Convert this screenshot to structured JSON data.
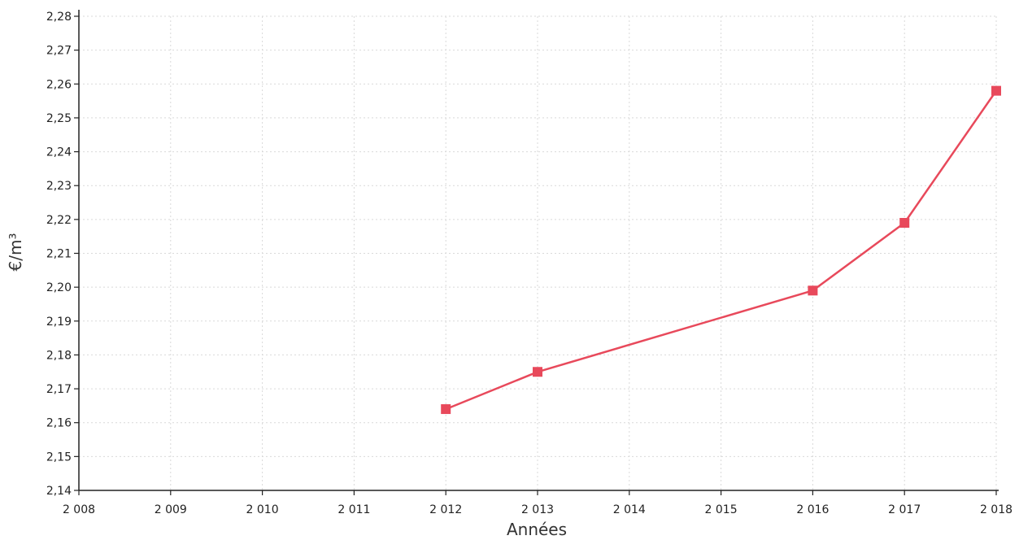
{
  "chart_data": {
    "type": "line",
    "xlabel": "Années",
    "ylabel": "€/m³",
    "x_ticks": [
      "2 008",
      "2 009",
      "2 010",
      "2 011",
      "2 012",
      "2 013",
      "2 014",
      "2 015",
      "2 016",
      "2 017",
      "2 018"
    ],
    "y_ticks": [
      "2,14",
      "2,15",
      "2,16",
      "2,17",
      "2,18",
      "2,19",
      "2,20",
      "2,21",
      "2,22",
      "2,23",
      "2,24",
      "2,25",
      "2,26",
      "2,27",
      "2,28"
    ],
    "xlim": [
      2008,
      2018
    ],
    "ylim": [
      2.14,
      2.28
    ],
    "grid": true,
    "series": [
      {
        "color": "#e8495b",
        "x": [
          2012,
          2013,
          2016,
          2017,
          2018
        ],
        "y": [
          2.164,
          2.175,
          2.199,
          2.219,
          2.258
        ]
      }
    ]
  }
}
